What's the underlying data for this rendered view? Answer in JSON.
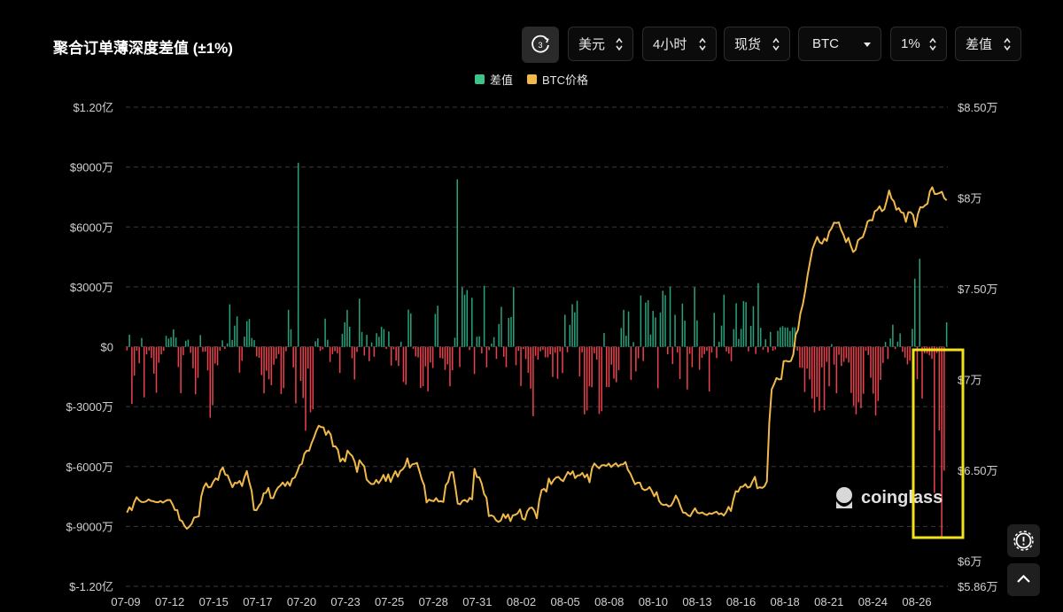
{
  "title": "聚合订单薄深度差值 (±1%)",
  "controls": {
    "refresh_badge": "3",
    "currency": "美元",
    "interval": "4小时",
    "market": "现货",
    "symbol": "BTC",
    "range": "1%",
    "metric": "差值"
  },
  "legend": [
    {
      "label": "差值",
      "color": "#3cc48a"
    },
    {
      "label": "BTC价格",
      "color": "#f0b94a"
    }
  ],
  "watermark": "coinglass",
  "icons": {
    "settings": "alert-gear-icon",
    "scroll_top": "chevron-up-icon"
  },
  "colors": {
    "positive": "#26a17b",
    "negative": "#e8424d",
    "price": "#f0b94a",
    "highlight": "#f2e21a"
  },
  "chart_data": {
    "type": "bar",
    "y_left": {
      "ticks": [
        120000000,
        90000000,
        60000000,
        30000000,
        0,
        -30000000,
        -60000000,
        -90000000,
        -120000000
      ],
      "tick_labels": [
        "$1.20亿",
        "$9000万",
        "$6000万",
        "$3000万",
        "$0",
        "$-3000万",
        "$-6000万",
        "$-9000万",
        "$-1.20亿"
      ],
      "range": [
        -120000000,
        120000000
      ]
    },
    "y_right": {
      "ticks": [
        85000,
        80000,
        75000,
        70000,
        65000,
        60000,
        58600
      ],
      "tick_labels": [
        "$8.50万",
        "$8万",
        "$7.50万",
        "$7万",
        "$6.50万",
        "$6万",
        "$5.86万"
      ],
      "range": [
        58600,
        85000
      ]
    },
    "x_tick_labels": [
      "07-09",
      "07-12",
      "07-15",
      "07-17",
      "07-20",
      "07-23",
      "07-25",
      "07-28",
      "07-31",
      "08-02",
      "08-05",
      "08-08",
      "08-10",
      "08-13",
      "08-16",
      "08-18",
      "08-21",
      "08-24",
      "08-26"
    ],
    "series": [
      {
        "name": "差值",
        "kind": "bar",
        "values": [
          -1870000,
          6060000,
          -28630000,
          -14530000,
          -2000000,
          -8300000,
          4370000,
          -25390000,
          -3840000,
          -1900000,
          -5630000,
          -13460000,
          -23050000,
          -8010000,
          -3860000,
          -2060000,
          5470000,
          4070000,
          4790000,
          8760000,
          4600000,
          -10210000,
          -23250000,
          -4250000,
          2960000,
          3570000,
          -3010000,
          -10740000,
          -23800000,
          -15600000,
          5840000,
          -2520000,
          -2420000,
          -11870000,
          -35530000,
          -29310000,
          -8410000,
          -9350000,
          -2100000,
          3190000,
          -1090000,
          1700000,
          21250000,
          3420000,
          10560000,
          15230000,
          -12990000,
          -7010000,
          5060000,
          12800000,
          13890000,
          4360000,
          3290000,
          -4880000,
          -5590000,
          -14190000,
          -23340000,
          -12000000,
          -16340000,
          -19270000,
          -9010000,
          -6000000,
          -3650000,
          -23690000,
          -20750000,
          -2270000,
          18510000,
          8790000,
          -10300000,
          -28360000,
          92150000,
          -17080000,
          -25650000,
          -42060000,
          -10960000,
          -32860000,
          -31290000,
          2730000,
          4210000,
          -2070000,
          -1320000,
          14100000,
          3510000,
          -7630000,
          -3720000,
          -2210000,
          -3310000,
          -13140000,
          6480000,
          12270000,
          18410000,
          10010000,
          -5780000,
          -16400000,
          -2640000,
          24070000,
          7410000,
          -4420000,
          5950000,
          -7230000,
          2160000,
          -5040000,
          6780000,
          4980000,
          10020000,
          8860000,
          -1050000,
          7630000,
          -9470000,
          -1280000,
          -6940000,
          -9620000,
          2490000,
          -17660000,
          -19010000,
          18610000,
          16730000,
          -1090000,
          -4860000,
          -5350000,
          -20660000,
          -19730000,
          -9850000,
          -22360000,
          -7860000,
          -10640000,
          16440000,
          20560000,
          -5610000,
          -5900000,
          -11610000,
          -8850000,
          -19820000,
          -11790000,
          4530000,
          83870000,
          -10140000,
          29830000,
          26030000,
          28400000,
          -1600000,
          24510000,
          -13640000,
          5010000,
          5210000,
          -3360000,
          30530000,
          -10310000,
          -1700000,
          1610000,
          4810000,
          -6080000,
          11400000,
          19980000,
          -5040000,
          -10220000,
          14430000,
          14880000,
          29880000,
          -9300000,
          -2110000,
          -19640000,
          -1100000,
          -6180000,
          -13060000,
          -20950000,
          -34800000,
          -4520000,
          -6440000,
          -2300000,
          -1610000,
          -5310000,
          -5330000,
          -3810000,
          -15140000,
          -3010000,
          -16040000,
          -2390000,
          -13180000,
          16010000,
          -2750000,
          10980000,
          21310000,
          17240000,
          23060000,
          -14850000,
          -2800000,
          -33850000,
          -31880000,
          -19830000,
          -20280000,
          -3290000,
          -6490000,
          -33650000,
          -32290000,
          6850000,
          -20150000,
          -20220000,
          -8980000,
          -15960000,
          -17750000,
          -11720000,
          9380000,
          18460000,
          5510000,
          17690000,
          -16620000,
          2310000,
          -12370000,
          -5780000,
          25680000,
          -7120000,
          22160000,
          23320000,
          6100000,
          17950000,
          14650000,
          -20790000,
          17190000,
          28050000,
          25850000,
          -3770000,
          30120000,
          -8680000,
          16000000,
          -2890000,
          -16180000,
          21630000,
          13070000,
          -21410000,
          -3480000,
          -10240000,
          29830000,
          13210000,
          -11550000,
          -5570000,
          -3700000,
          -2090000,
          -22410000,
          -2840000,
          16950000,
          -5660000,
          2520000,
          10600000,
          26080000,
          -2360000,
          -3470000,
          -7240000,
          8850000,
          21790000,
          3880000,
          8940000,
          22890000,
          22360000,
          -2300000,
          10380000,
          20340000,
          -3590000,
          31880000,
          9450000,
          -1540000,
          3740000,
          -2870000,
          7430000,
          -2020000,
          -1400000,
          8000000,
          9700000,
          10310000,
          9620000,
          9640000,
          7910000,
          9680000,
          9660000,
          -2000000,
          -10380000,
          -10590000,
          -22700000,
          -10960000,
          -16410000,
          -25910000,
          -32880000,
          -25150000,
          -32040000,
          -10300000,
          -31710000,
          -7600000,
          -19840000,
          1310000,
          -8950000,
          -23290000,
          -4030000,
          -9620000,
          -7590000,
          -5780000,
          -7920000,
          -23150000,
          -29580000,
          -33840000,
          -27890000,
          -30760000,
          -23560000,
          -1960000,
          -4180000,
          -15530000,
          -23490000,
          -34440000,
          -27180000,
          -16620000,
          -8120000,
          2430000,
          -6160000,
          4140000,
          11050000,
          -1140000,
          2570000,
          6690000,
          -2590000,
          -5450000,
          -8850000,
          -7010000,
          8970000,
          34120000,
          -16300000,
          44050000,
          -25940000,
          -3270000,
          -3330000,
          -4310000,
          -6100000,
          -73190000,
          -3210000,
          -41940000,
          -95110000,
          -62040000,
          12240000
        ]
      },
      {
        "name": "BTC价格",
        "kind": "line",
        "values": [
          62660,
          62960,
          62790,
          63220,
          63510,
          63350,
          63250,
          63240,
          63280,
          63390,
          63310,
          63290,
          63240,
          63230,
          63300,
          63210,
          63300,
          63360,
          63350,
          63120,
          62800,
          62800,
          62260,
          62190,
          61930,
          61770,
          61890,
          62050,
          62390,
          62420,
          62460,
          63560,
          64050,
          64280,
          64050,
          64080,
          64360,
          64550,
          64460,
          64960,
          65150,
          64750,
          64720,
          64380,
          64060,
          64310,
          64280,
          64410,
          64120,
          64600,
          64950,
          64350,
          63870,
          62810,
          62790,
          63030,
          63200,
          63720,
          63750,
          64020,
          63460,
          63460,
          63820,
          64040,
          64150,
          64320,
          64130,
          64350,
          64140,
          64530,
          64590,
          64900,
          65270,
          65350,
          65900,
          66070,
          66070,
          66480,
          66790,
          67170,
          67450,
          67370,
          67360,
          66940,
          67160,
          66960,
          66310,
          66310,
          66120,
          65470,
          65650,
          65480,
          66080,
          65900,
          65780,
          65460,
          64900,
          65550,
          65360,
          65210,
          64480,
          64340,
          64230,
          64240,
          64460,
          64280,
          64470,
          64740,
          64400,
          64770,
          64350,
          64670,
          64940,
          64640,
          64950,
          65040,
          65230,
          65650,
          65140,
          65320,
          65350,
          65400,
          64960,
          64490,
          64170,
          63220,
          63380,
          63320,
          63290,
          63460,
          63270,
          63290,
          63250,
          64170,
          64350,
          64880,
          64890,
          64080,
          63160,
          63120,
          63310,
          63360,
          63250,
          63470,
          63390,
          65080,
          64620,
          64600,
          64260,
          63690,
          63480,
          62470,
          62510,
          62450,
          62240,
          62150,
          62230,
          62580,
          62360,
          62560,
          62190,
          62510,
          62540,
          62620,
          62840,
          62330,
          62270,
          62720,
          62910,
          62940,
          62760,
          62350,
          63330,
          63900,
          63970,
          63820,
          64540,
          64230,
          64450,
          64590,
          64630,
          64480,
          64390,
          64660,
          64900,
          64760,
          64940,
          64560,
          64710,
          64720,
          64850,
          64600,
          64770,
          64330,
          65090,
          65370,
          65220,
          65100,
          65260,
          65280,
          65240,
          65360,
          65170,
          65290,
          65380,
          65200,
          65310,
          65320,
          65450,
          65020,
          64820,
          64510,
          64220,
          64310,
          64310,
          63980,
          63900,
          63940,
          64070,
          63850,
          63560,
          63790,
          63310,
          63130,
          63080,
          63110,
          63000,
          63040,
          63280,
          63600,
          63360,
          62980,
          62660,
          62650,
          62520,
          62460,
          62700,
          62900,
          62660,
          62620,
          62670,
          62580,
          62530,
          62630,
          62590,
          62660,
          62710,
          62570,
          62620,
          62500,
          62680,
          62980,
          62750,
          63380,
          63840,
          63810,
          64080,
          64090,
          64230,
          64040,
          64080,
          64380,
          64630,
          64000,
          64060,
          64020,
          64110,
          64380,
          67610,
          69450,
          69740,
          70080,
          70000,
          70010,
          71010,
          71020,
          70980,
          71010,
          71360,
          72450,
          72740,
          73650,
          74130,
          74880,
          75750,
          76470,
          77170,
          77520,
          77850,
          77560,
          77480,
          77760,
          77630,
          78140,
          78330,
          78640,
          78620,
          78650,
          78230,
          77960,
          77560,
          77800,
          77370,
          77020,
          77140,
          77660,
          77770,
          77840,
          78210,
          78700,
          78780,
          78760,
          79260,
          79340,
          79540,
          79270,
          79370,
          79850,
          80410,
          79970,
          79810,
          79350,
          79440,
          79210,
          79170,
          78680,
          79210,
          79210,
          79060,
          78420,
          79100,
          79490,
          79470,
          79590,
          79680,
          80360,
          80590,
          80220,
          80220,
          80270,
          80340,
          79990,
          79870
        ]
      }
    ]
  }
}
